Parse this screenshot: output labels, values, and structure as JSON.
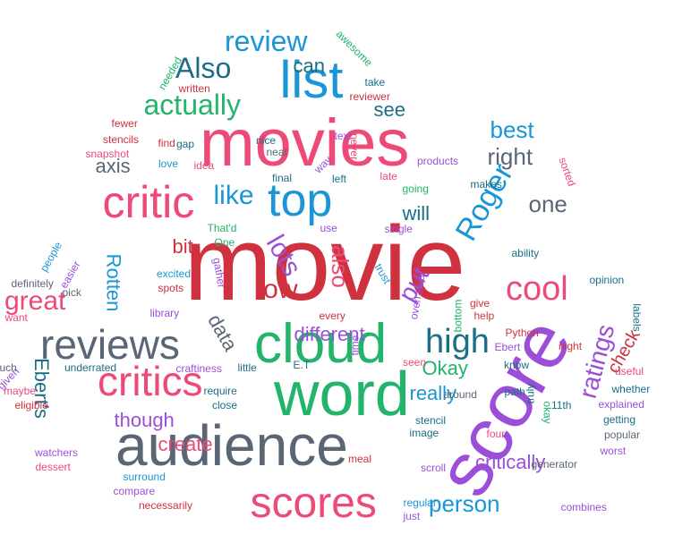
{
  "palette": {
    "red": "#d0313e",
    "pink": "#ee4a78",
    "purple": "#9b4fd8",
    "green": "#21b46a",
    "blue": "#1a96d6",
    "teal": "#1a6e86",
    "gray": "#5a6675"
  },
  "words": [
    {
      "text": "movie",
      "color": "red"
    },
    {
      "text": "movies",
      "color": "pink"
    },
    {
      "text": "score",
      "color": "purple"
    },
    {
      "text": "word",
      "color": "green"
    },
    {
      "text": "cloud",
      "color": "green"
    },
    {
      "text": "audience",
      "color": "gray"
    },
    {
      "text": "scores",
      "color": "pink"
    },
    {
      "text": "critics",
      "color": "pink"
    },
    {
      "text": "reviews",
      "color": "gray"
    },
    {
      "text": "list",
      "color": "blue"
    },
    {
      "text": "critic",
      "color": "pink"
    },
    {
      "text": "top",
      "color": "blue"
    },
    {
      "text": "review",
      "color": "blue"
    },
    {
      "text": "Also",
      "color": "teal"
    },
    {
      "text": "actually",
      "color": "green"
    },
    {
      "text": "can",
      "color": "teal"
    },
    {
      "text": "see",
      "color": "teal"
    },
    {
      "text": "best",
      "color": "blue"
    },
    {
      "text": "right",
      "color": "gray"
    },
    {
      "text": "Roger",
      "color": "blue"
    },
    {
      "text": "one",
      "color": "gray"
    },
    {
      "text": "like",
      "color": "blue"
    },
    {
      "text": "will",
      "color": "teal"
    },
    {
      "text": "axis",
      "color": "gray"
    },
    {
      "text": "lots",
      "color": "purple"
    },
    {
      "text": "low",
      "color": "red"
    },
    {
      "text": "also",
      "color": "pink"
    },
    {
      "text": "put",
      "color": "purple"
    },
    {
      "text": "cool",
      "color": "pink"
    },
    {
      "text": "high",
      "color": "teal"
    },
    {
      "text": "different",
      "color": "purple"
    },
    {
      "text": "Okay",
      "color": "green"
    },
    {
      "text": "ratings",
      "color": "purple"
    },
    {
      "text": "check",
      "color": "red"
    },
    {
      "text": "bit",
      "color": "red"
    },
    {
      "text": "Rotten",
      "color": "blue"
    },
    {
      "text": "great",
      "color": "pink"
    },
    {
      "text": "data",
      "color": "gray"
    },
    {
      "text": "Ebert's",
      "color": "teal"
    },
    {
      "text": "though",
      "color": "purple"
    },
    {
      "text": "create",
      "color": "pink"
    },
    {
      "text": "really",
      "color": "blue"
    },
    {
      "text": "critically",
      "color": "purple"
    },
    {
      "text": "person",
      "color": "blue"
    },
    {
      "text": "awesome",
      "color": "green"
    },
    {
      "text": "needed",
      "color": "green"
    },
    {
      "text": "written",
      "color": "red"
    },
    {
      "text": "reviewer",
      "color": "red"
    },
    {
      "text": "take",
      "color": "teal"
    },
    {
      "text": "fewer",
      "color": "red"
    },
    {
      "text": "stencils",
      "color": "red"
    },
    {
      "text": "snapshot",
      "color": "pink"
    },
    {
      "text": "love",
      "color": "blue"
    },
    {
      "text": "find",
      "color": "red"
    },
    {
      "text": "gap",
      "color": "teal"
    },
    {
      "text": "idea",
      "color": "pink"
    },
    {
      "text": "nice",
      "color": "teal"
    },
    {
      "text": "neat",
      "color": "gray"
    },
    {
      "text": "text",
      "color": "purple"
    },
    {
      "text": "never",
      "color": "pink"
    },
    {
      "text": "way",
      "color": "purple"
    },
    {
      "text": "left",
      "color": "teal"
    },
    {
      "text": "late",
      "color": "pink"
    },
    {
      "text": "products",
      "color": "purple"
    },
    {
      "text": "sorted",
      "color": "pink"
    },
    {
      "text": "makes",
      "color": "teal"
    },
    {
      "text": "going",
      "color": "green"
    },
    {
      "text": "final",
      "color": "teal"
    },
    {
      "text": "That'd",
      "color": "green"
    },
    {
      "text": "use",
      "color": "purple"
    },
    {
      "text": "single",
      "color": "purple"
    },
    {
      "text": "One",
      "color": "green"
    },
    {
      "text": "gather",
      "color": "purple"
    },
    {
      "text": "trust",
      "color": "blue"
    },
    {
      "text": "people",
      "color": "blue"
    },
    {
      "text": "easier",
      "color": "purple"
    },
    {
      "text": "excited",
      "color": "blue"
    },
    {
      "text": "spots",
      "color": "red"
    },
    {
      "text": "definitely",
      "color": "gray"
    },
    {
      "text": "pick",
      "color": "gray"
    },
    {
      "text": "library",
      "color": "purple"
    },
    {
      "text": "overrated",
      "color": "purple"
    },
    {
      "text": "ability",
      "color": "teal"
    },
    {
      "text": "opinion",
      "color": "teal"
    },
    {
      "text": "give",
      "color": "red"
    },
    {
      "text": "bottom",
      "color": "green"
    },
    {
      "text": "want",
      "color": "pink"
    },
    {
      "text": "every",
      "color": "red"
    },
    {
      "text": "help",
      "color": "red"
    },
    {
      "text": "labels",
      "color": "teal"
    },
    {
      "text": "Python",
      "color": "red"
    },
    {
      "text": "Ebert",
      "color": "purple"
    },
    {
      "text": "night",
      "color": "red"
    },
    {
      "text": "uch",
      "color": "gray"
    },
    {
      "text": "underrated",
      "color": "teal"
    },
    {
      "text": "craftiness",
      "color": "purple"
    },
    {
      "text": "little",
      "color": "teal"
    },
    {
      "text": "E.T",
      "color": "teal"
    },
    {
      "text": "time",
      "color": "purple"
    },
    {
      "text": "seen",
      "color": "pink"
    },
    {
      "text": "know",
      "color": "teal"
    },
    {
      "text": "useful",
      "color": "pink"
    },
    {
      "text": "given",
      "color": "purple"
    },
    {
      "text": "maybe",
      "color": "pink"
    },
    {
      "text": "eligible",
      "color": "red"
    },
    {
      "text": "require",
      "color": "teal"
    },
    {
      "text": "close",
      "color": "teal"
    },
    {
      "text": "around",
      "color": "gray"
    },
    {
      "text": "path",
      "color": "teal"
    },
    {
      "text": "truly",
      "color": "teal"
    },
    {
      "text": "11th",
      "color": "teal"
    },
    {
      "text": "whether",
      "color": "teal"
    },
    {
      "text": "explained",
      "color": "purple"
    },
    {
      "text": "okay",
      "color": "green"
    },
    {
      "text": "getting",
      "color": "teal"
    },
    {
      "text": "stencil",
      "color": "teal"
    },
    {
      "text": "image",
      "color": "teal"
    },
    {
      "text": "four",
      "color": "pink"
    },
    {
      "text": "popular",
      "color": "gray"
    },
    {
      "text": "watchers",
      "color": "purple"
    },
    {
      "text": "dessert",
      "color": "pink"
    },
    {
      "text": "meal",
      "color": "red"
    },
    {
      "text": "generator",
      "color": "gray"
    },
    {
      "text": "worst",
      "color": "purple"
    },
    {
      "text": "scroll",
      "color": "purple"
    },
    {
      "text": "surround",
      "color": "blue"
    },
    {
      "text": "compare",
      "color": "purple"
    },
    {
      "text": "necessarily",
      "color": "red"
    },
    {
      "text": "regular",
      "color": "blue"
    },
    {
      "text": "just",
      "color": "purple"
    },
    {
      "text": "combines",
      "color": "purple"
    }
  ]
}
